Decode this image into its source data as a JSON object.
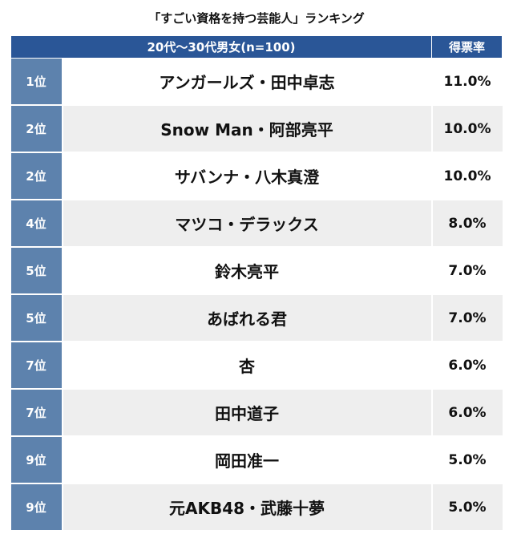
{
  "title": "「すごい資格を持つ芸能人」ランキング",
  "chart_data": {
    "type": "table",
    "header": {
      "group": "20代〜30代男女(n=100)",
      "rate": "得票率"
    },
    "rows": [
      {
        "rank": "1位",
        "name": "アンガールズ・田中卓志",
        "rate": "11.0%",
        "value": 11.0
      },
      {
        "rank": "2位",
        "name": "Snow Man・阿部亮平",
        "rate": "10.0%",
        "value": 10.0
      },
      {
        "rank": "2位",
        "name": "サバンナ・八木真澄",
        "rate": "10.0%",
        "value": 10.0
      },
      {
        "rank": "4位",
        "name": "マツコ・デラックス",
        "rate": "8.0%",
        "value": 8.0
      },
      {
        "rank": "5位",
        "name": "鈴木亮平",
        "rate": "7.0%",
        "value": 7.0
      },
      {
        "rank": "5位",
        "name": "あばれる君",
        "rate": "7.0%",
        "value": 7.0
      },
      {
        "rank": "7位",
        "name": "杏",
        "rate": "6.0%",
        "value": 6.0
      },
      {
        "rank": "7位",
        "name": "田中道子",
        "rate": "6.0%",
        "value": 6.0
      },
      {
        "rank": "9位",
        "name": "岡田准一",
        "rate": "5.0%",
        "value": 5.0
      },
      {
        "rank": "9位",
        "name": "元AKB48・武藤十夢",
        "rate": "5.0%",
        "value": 5.0
      }
    ]
  },
  "colors": {
    "header_bg": "#2a5697",
    "rank_bg": "#5d82ad",
    "stripe_bg": "#eeeeee"
  }
}
